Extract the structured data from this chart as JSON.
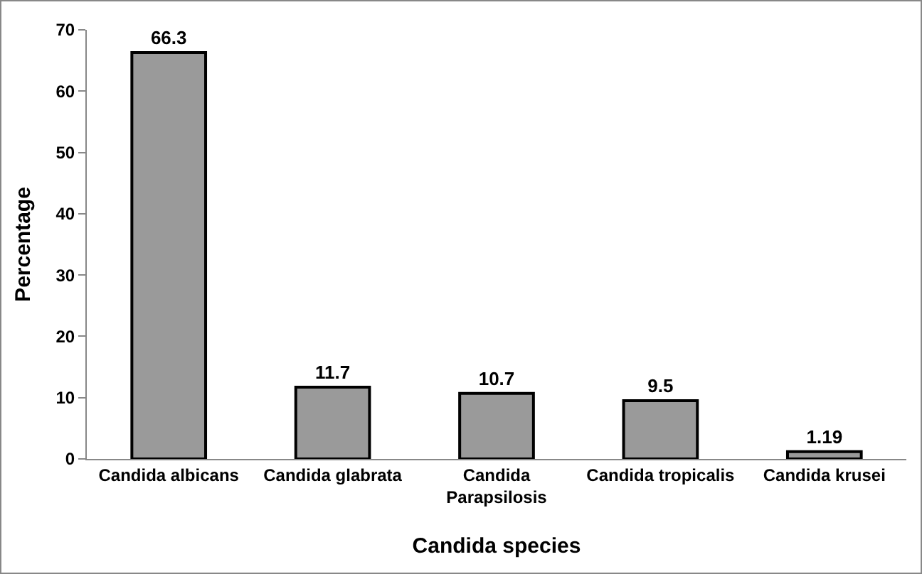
{
  "chart_data": {
    "type": "bar",
    "xlabel": "Candida species",
    "ylabel": "Percentage",
    "categories": [
      "Candida albicans",
      "Candida glabrata",
      "Candida Parapsilosis",
      "Candida tropicalis",
      "Candida krusei"
    ],
    "values": [
      66.3,
      11.7,
      10.7,
      9.5,
      1.19
    ],
    "color": "#9a9a9a",
    "ylim": [
      0,
      70
    ],
    "yticks": [
      0,
      10,
      20,
      30,
      40,
      50,
      60,
      70
    ],
    "grid": false,
    "data_labels": true,
    "legend": false
  }
}
